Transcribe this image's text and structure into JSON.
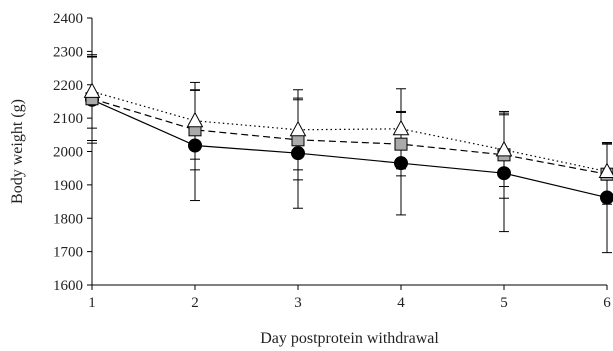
{
  "chart_data": {
    "type": "line",
    "xlabel": "Day postprotein withdrawal",
    "ylabel": "Body weight (g)",
    "xlim": [
      1,
      6
    ],
    "ylim": [
      1600,
      2400
    ],
    "x_ticks": [
      1,
      2,
      3,
      4,
      5,
      6
    ],
    "y_ticks": [
      1600,
      1700,
      1800,
      1900,
      2000,
      2100,
      2200,
      2300,
      2400
    ],
    "grid": false,
    "legend": "none",
    "series": [
      {
        "marker": "circle",
        "marker_fill": "#000000",
        "line_style": "solid",
        "x": [
          1,
          2,
          3,
          4,
          5,
          6
        ],
        "values": [
          2155,
          2018,
          1995,
          1965,
          1935,
          1862
        ],
        "error": [
          130,
          165,
          165,
          155,
          175,
          165
        ]
      },
      {
        "marker": "square",
        "marker_fill": "#aaaaaa",
        "line_style": "dashed",
        "x": [
          1,
          2,
          3,
          4,
          5,
          6
        ],
        "values": [
          2158,
          2065,
          2035,
          2022,
          1990,
          1932
        ],
        "error": [
          125,
          120,
          120,
          95,
          130,
          90
        ]
      },
      {
        "marker": "triangle",
        "marker_fill": "#ffffff",
        "line_style": "dotted",
        "x": [
          1,
          2,
          3,
          4,
          5,
          6
        ],
        "values": [
          2180,
          2092,
          2065,
          2068,
          2005,
          1940
        ],
        "error": [
          110,
          115,
          120,
          120,
          110,
          85
        ]
      }
    ]
  }
}
